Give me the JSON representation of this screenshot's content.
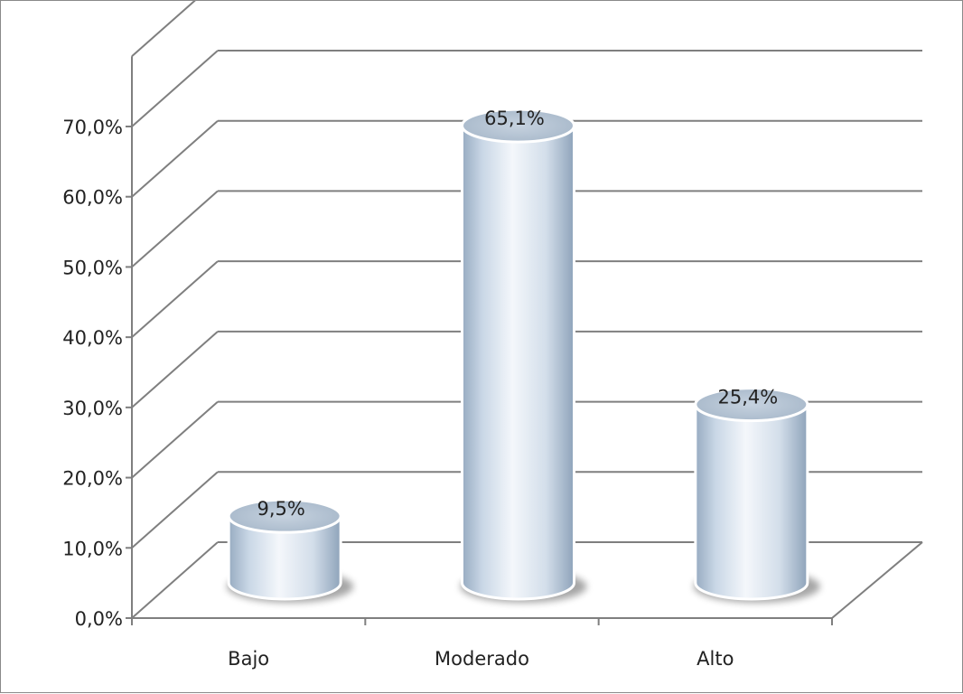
{
  "chart_data": {
    "type": "bar",
    "style": "3d-cylinder",
    "categories": [
      "Bajo",
      "Moderado",
      "Alto"
    ],
    "values": [
      9.5,
      65.1,
      25.4
    ],
    "data_labels": [
      "9,5%",
      "65,1%",
      "25,4%"
    ],
    "y_ticks": [
      0,
      10,
      20,
      30,
      40,
      50,
      60,
      70
    ],
    "y_tick_labels": [
      "0,0%",
      "10,0%",
      "20,0%",
      "30,0%",
      "40,0%",
      "50,0%",
      "60,0%",
      "70,0%"
    ],
    "ylim": [
      0,
      70
    ],
    "grid": true,
    "legend": "none",
    "colors": {
      "bar_light": "#f4f7fb",
      "bar_mid": "#c9d7e6",
      "bar_dark": "#8ea3ba",
      "bar_top": "#b3c2d2",
      "grid": "#7f7f7f"
    }
  }
}
